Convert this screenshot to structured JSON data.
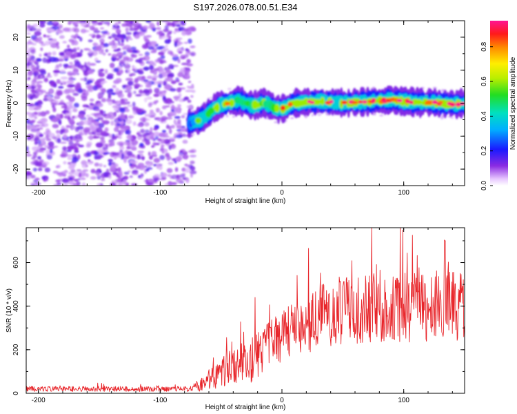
{
  "title": "S197.2026.078.00.51.E34",
  "chart_data": [
    {
      "type": "heatmap",
      "xlabel": "Height of straight line (km)",
      "ylabel": "Frequency (Hz)",
      "xlim": [
        -210,
        150
      ],
      "ylim": [
        -25,
        25
      ],
      "xticks": [
        -200,
        -100,
        0,
        100
      ],
      "yticks": [
        -20,
        -10,
        0,
        10,
        20
      ],
      "colorbar": {
        "label": "Normalized spectral amplitude",
        "range": [
          0,
          0.95
        ],
        "ticks": [
          "0.0",
          "0.2",
          "0.4",
          "0.6",
          "0.8"
        ]
      },
      "ridge": {
        "x": [
          -75,
          -70,
          -65,
          -60,
          -55,
          -50,
          -45,
          -40,
          -35,
          -30,
          -25,
          -20,
          -15,
          -10,
          -5,
          0,
          10,
          20,
          30,
          40,
          50,
          60,
          70,
          80,
          90,
          100,
          110,
          120,
          130,
          140,
          150
        ],
        "freq": [
          -6,
          -5.5,
          -4.5,
          -3,
          -1.5,
          -0.5,
          0,
          0.3,
          0.8,
          0,
          -0.7,
          -0.5,
          0,
          -0.5,
          -1.5,
          -1.8,
          0,
          0.3,
          0.5,
          0.3,
          0,
          0.3,
          0.5,
          0.7,
          1,
          0.5,
          0.3,
          0.2,
          0,
          -0.2,
          -0.2
        ],
        "amplitude": [
          0.3,
          0.5,
          0.6,
          0.6,
          0.7,
          0.75,
          0.8,
          0.8,
          0.6,
          0.55,
          0.6,
          0.7,
          0.65,
          0.5,
          0.6,
          0.85,
          0.75,
          0.85,
          0.9,
          0.92,
          0.88,
          0.9,
          0.92,
          0.9,
          0.85,
          0.92,
          0.9,
          0.88,
          0.85,
          0.88,
          0.9
        ]
      },
      "noise_region_x": [
        -210,
        -72
      ]
    },
    {
      "type": "line",
      "xlabel": "Height of straight line (km)",
      "ylabel": "SNR (10 * v/v)",
      "xlim": [
        -210,
        150
      ],
      "ylim": [
        0,
        760
      ],
      "xticks": [
        -200,
        -100,
        0,
        100
      ],
      "yticks": [
        0,
        200,
        400,
        600
      ],
      "color": "#e8262b",
      "envelope": {
        "x": [
          -210,
          -75,
          -65,
          -55,
          -45,
          -35,
          -25,
          -15,
          -5,
          5,
          15,
          25,
          35,
          50,
          70,
          90,
          110,
          130,
          150
        ],
        "mean": [
          20,
          20,
          45,
          80,
          115,
          140,
          150,
          200,
          250,
          280,
          300,
          330,
          360,
          380,
          390,
          395,
          395,
          400,
          400
        ],
        "spread": [
          12,
          12,
          35,
          60,
          80,
          90,
          100,
          110,
          120,
          120,
          130,
          140,
          150,
          160,
          160,
          160,
          160,
          160,
          160
        ]
      },
      "peaks": [
        {
          "x": -22,
          "y": 440
        },
        {
          "x": 22,
          "y": 665
        },
        {
          "x": 97,
          "y": 760
        },
        {
          "x": 134,
          "y": 700
        }
      ]
    }
  ]
}
